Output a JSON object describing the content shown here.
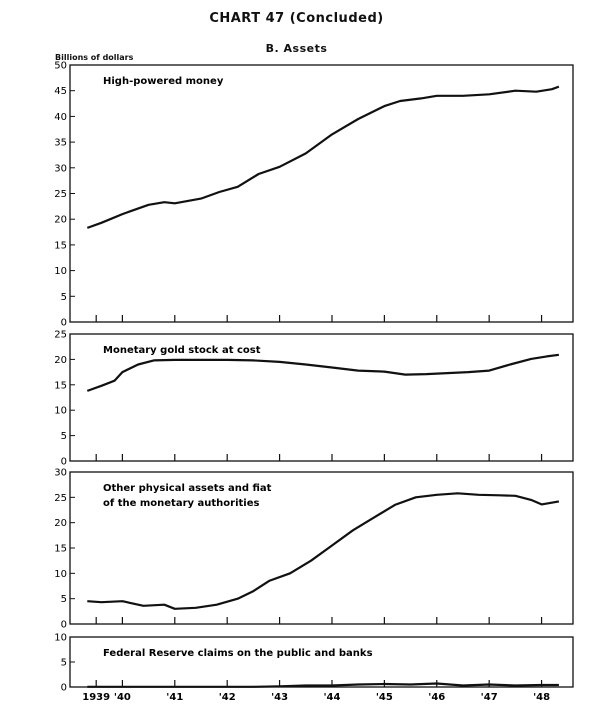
{
  "header": {
    "title": "CHART 47 (Concluded)",
    "subtitle": "B. Assets",
    "unit": "Billions of dollars"
  },
  "chart_data": [
    {
      "type": "line",
      "title": "High-powered money",
      "ylim": [
        0,
        50
      ],
      "yticks": [
        0,
        5,
        10,
        15,
        20,
        25,
        30,
        35,
        40,
        45,
        50
      ],
      "x": [
        1939.33,
        1939.6,
        1940.0,
        1940.5,
        1940.8,
        1941.0,
        1941.5,
        1941.85,
        1942.2,
        1942.6,
        1943.0,
        1943.5,
        1944.0,
        1944.5,
        1945.0,
        1945.3,
        1945.7,
        1946.0,
        1946.5,
        1947.0,
        1947.5,
        1947.9,
        1948.2,
        1948.33
      ],
      "series": [
        {
          "values": [
            18.3,
            19.3,
            21.0,
            22.8,
            23.3,
            23.1,
            24.0,
            25.3,
            26.3,
            28.8,
            30.2,
            32.8,
            36.5,
            39.5,
            42.0,
            43.0,
            43.5,
            44.0,
            44.0,
            44.3,
            45.0,
            44.8,
            45.3,
            45.8
          ]
        }
      ]
    },
    {
      "type": "line",
      "title": "Monetary gold stock at cost",
      "ylim": [
        0,
        25
      ],
      "yticks": [
        0,
        5,
        10,
        15,
        20,
        25
      ],
      "x": [
        1939.33,
        1939.6,
        1939.85,
        1940.0,
        1940.3,
        1940.6,
        1941.0,
        1941.5,
        1942.0,
        1942.5,
        1943.0,
        1943.5,
        1944.0,
        1944.5,
        1945.0,
        1945.4,
        1945.8,
        1946.2,
        1946.6,
        1947.0,
        1947.4,
        1947.8,
        1948.1,
        1948.33
      ],
      "series": [
        {
          "values": [
            13.8,
            14.8,
            15.8,
            17.5,
            19.0,
            19.8,
            19.9,
            19.9,
            19.9,
            19.8,
            19.5,
            19.0,
            18.4,
            17.8,
            17.6,
            17.0,
            17.1,
            17.3,
            17.5,
            17.8,
            19.0,
            20.1,
            20.6,
            20.9
          ]
        }
      ]
    },
    {
      "type": "line",
      "title": [
        "Other physical assets and fiat",
        "of the monetary authorities"
      ],
      "ylim": [
        0,
        30
      ],
      "yticks": [
        0,
        5,
        10,
        15,
        20,
        25,
        30
      ],
      "x": [
        1939.33,
        1939.6,
        1940.0,
        1940.4,
        1940.8,
        1941.0,
        1941.4,
        1941.8,
        1942.2,
        1942.5,
        1942.8,
        1943.2,
        1943.6,
        1944.0,
        1944.4,
        1944.8,
        1945.2,
        1945.6,
        1946.0,
        1946.4,
        1946.8,
        1947.2,
        1947.5,
        1947.8,
        1948.0,
        1948.33
      ],
      "series": [
        {
          "values": [
            4.5,
            4.3,
            4.5,
            3.6,
            3.8,
            3.0,
            3.2,
            3.8,
            5.0,
            6.5,
            8.5,
            10.0,
            12.5,
            15.5,
            18.5,
            21.0,
            23.5,
            25.0,
            25.5,
            25.8,
            25.5,
            25.4,
            25.3,
            24.5,
            23.6,
            24.2
          ]
        }
      ]
    },
    {
      "type": "line",
      "title": "Federal Reserve claims on the public and banks",
      "ylim": [
        0,
        10
      ],
      "yticks": [
        0,
        5,
        10
      ],
      "xticklabels": [
        "1939",
        "'40",
        "'41",
        "'42",
        "'43",
        "'44",
        "'45",
        "'46",
        "'47",
        "'48"
      ],
      "x": [
        1939.33,
        1940.0,
        1941.0,
        1942.0,
        1942.5,
        1943.0,
        1943.5,
        1944.0,
        1944.5,
        1945.0,
        1945.5,
        1946.0,
        1946.5,
        1947.0,
        1947.5,
        1948.0,
        1948.33
      ],
      "series": [
        {
          "values": [
            0.05,
            0.05,
            0.05,
            0.05,
            0.05,
            0.15,
            0.3,
            0.3,
            0.5,
            0.6,
            0.5,
            0.7,
            0.3,
            0.5,
            0.3,
            0.4,
            0.4
          ]
        }
      ]
    }
  ]
}
